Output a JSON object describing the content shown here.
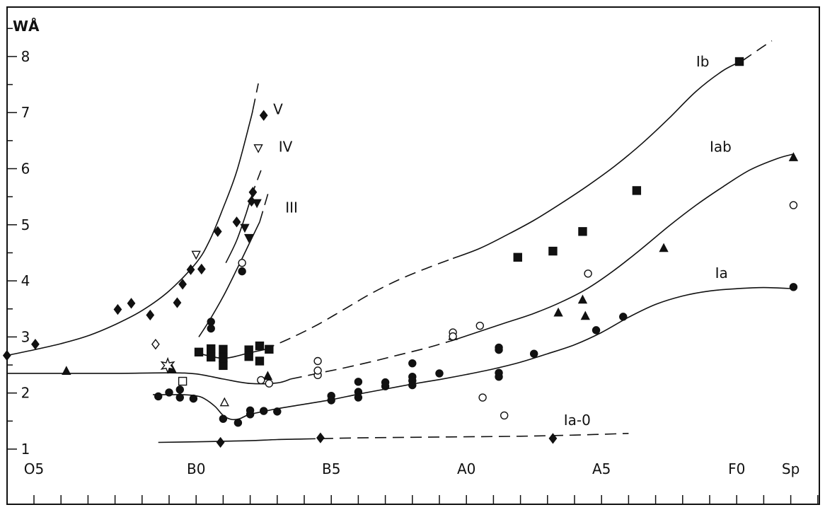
{
  "chart_data": {
    "type": "scatter",
    "ylabel": "WÅ",
    "xlabel": "",
    "xlim": [
      -1,
      29
    ],
    "ylim": [
      0.65,
      8.75
    ],
    "grid": false,
    "x_ticks": [
      {
        "x": 0,
        "label": "O5"
      },
      {
        "x": 6,
        "label": "B0"
      },
      {
        "x": 11,
        "label": "B5"
      },
      {
        "x": 16,
        "label": "A0"
      },
      {
        "x": 21,
        "label": "A5"
      },
      {
        "x": 26,
        "label": "F0"
      },
      {
        "x": 28,
        "label": "Sp"
      }
    ],
    "y_ticks": [
      1,
      2,
      3,
      4,
      5,
      6,
      7,
      8
    ],
    "curves": [
      {
        "label": "V",
        "style": "solid",
        "points": [
          [
            -1,
            2.67
          ],
          [
            0,
            2.77
          ],
          [
            1,
            2.88
          ],
          [
            2,
            3.02
          ],
          [
            3,
            3.22
          ],
          [
            4,
            3.47
          ],
          [
            5,
            3.82
          ],
          [
            6,
            4.32
          ],
          [
            6.5,
            4.72
          ],
          [
            7,
            5.3
          ],
          [
            7.5,
            5.95
          ],
          [
            8,
            6.85
          ],
          [
            8.1,
            7.05
          ]
        ]
      },
      {
        "label": "V",
        "style": "dashed",
        "points": [
          [
            8.1,
            7.05
          ],
          [
            8.3,
            7.52
          ]
        ]
      },
      {
        "label": "IV",
        "style": "solid",
        "points": [
          [
            7.1,
            4.32
          ],
          [
            7.5,
            4.72
          ],
          [
            7.85,
            5.2
          ]
        ]
      },
      {
        "label": "IV",
        "style": "dashed",
        "points": [
          [
            7.85,
            5.2
          ],
          [
            8.1,
            5.58
          ],
          [
            8.4,
            5.97
          ]
        ]
      },
      {
        "label": "III",
        "style": "solid",
        "points": [
          [
            6.1,
            3.0
          ],
          [
            6.5,
            3.3
          ],
          [
            7,
            3.72
          ],
          [
            7.5,
            4.2
          ],
          [
            8,
            4.7
          ],
          [
            8.35,
            5.05
          ]
        ]
      },
      {
        "label": "III",
        "style": "dashed",
        "points": [
          [
            8.35,
            5.05
          ],
          [
            8.7,
            5.62
          ]
        ]
      },
      {
        "label": "Ib",
        "style": "solid",
        "points": [
          [
            6,
            2.72
          ],
          [
            7,
            2.62
          ],
          [
            8,
            2.72
          ],
          [
            8.5,
            2.77
          ]
        ]
      },
      {
        "label": "Ib",
        "style": "dashed",
        "points": [
          [
            8.5,
            2.77
          ],
          [
            9.5,
            2.98
          ],
          [
            10.5,
            3.22
          ],
          [
            11.5,
            3.5
          ],
          [
            12.5,
            3.78
          ],
          [
            13.5,
            4.02
          ],
          [
            14.5,
            4.22
          ],
          [
            15.5,
            4.4
          ]
        ]
      },
      {
        "label": "Ib",
        "style": "solid",
        "points": [
          [
            15.5,
            4.4
          ],
          [
            16.5,
            4.58
          ],
          [
            17.5,
            4.82
          ],
          [
            18.5,
            5.08
          ],
          [
            19.5,
            5.38
          ],
          [
            20.5,
            5.7
          ],
          [
            21.5,
            6.05
          ],
          [
            22.5,
            6.45
          ],
          [
            23.5,
            6.9
          ],
          [
            24.5,
            7.38
          ],
          [
            25.5,
            7.75
          ],
          [
            26.2,
            7.92
          ]
        ]
      },
      {
        "label": "Ib",
        "style": "dashed",
        "points": [
          [
            26.2,
            7.92
          ],
          [
            26.8,
            8.12
          ],
          [
            27.3,
            8.28
          ]
        ]
      },
      {
        "label": "Iab",
        "style": "solid",
        "points": [
          [
            -1,
            2.35
          ],
          [
            1,
            2.35
          ],
          [
            3,
            2.35
          ],
          [
            5,
            2.36
          ],
          [
            6,
            2.34
          ],
          [
            7,
            2.25
          ],
          [
            8,
            2.17
          ],
          [
            9,
            2.18
          ],
          [
            9.5,
            2.25
          ]
        ]
      },
      {
        "label": "Iab",
        "style": "dashed",
        "points": [
          [
            9.5,
            2.25
          ],
          [
            10.5,
            2.35
          ],
          [
            11.5,
            2.45
          ],
          [
            12.5,
            2.56
          ],
          [
            13.5,
            2.68
          ],
          [
            14.5,
            2.8
          ],
          [
            15.5,
            2.94
          ]
        ]
      },
      {
        "label": "Iab",
        "style": "solid",
        "points": [
          [
            15.5,
            2.94
          ],
          [
            16.5,
            3.1
          ],
          [
            17.5,
            3.26
          ],
          [
            18.5,
            3.42
          ],
          [
            19.5,
            3.62
          ],
          [
            20.5,
            3.87
          ],
          [
            21.5,
            4.2
          ],
          [
            22.5,
            4.58
          ],
          [
            23.5,
            4.98
          ],
          [
            24.5,
            5.35
          ],
          [
            25.5,
            5.68
          ],
          [
            26.5,
            5.98
          ],
          [
            27.5,
            6.18
          ],
          [
            28.1,
            6.26
          ]
        ]
      },
      {
        "label": "Ia",
        "style": "solid",
        "points": [
          [
            4.4,
            1.97
          ],
          [
            5,
            1.97
          ],
          [
            5.5,
            1.97
          ],
          [
            6,
            1.95
          ],
          [
            6.3,
            1.9
          ],
          [
            6.7,
            1.76
          ],
          [
            7,
            1.6
          ],
          [
            7.3,
            1.53
          ],
          [
            7.6,
            1.54
          ],
          [
            8,
            1.62
          ],
          [
            9,
            1.72
          ],
          [
            10,
            1.8
          ],
          [
            11,
            1.88
          ],
          [
            12,
            1.98
          ],
          [
            13,
            2.07
          ],
          [
            14,
            2.16
          ],
          [
            15,
            2.24
          ],
          [
            16,
            2.33
          ],
          [
            17,
            2.43
          ],
          [
            18,
            2.55
          ],
          [
            19,
            2.7
          ],
          [
            20,
            2.86
          ],
          [
            21,
            3.08
          ],
          [
            22,
            3.35
          ],
          [
            23,
            3.58
          ],
          [
            24,
            3.73
          ],
          [
            25,
            3.82
          ],
          [
            26,
            3.86
          ],
          [
            27,
            3.88
          ],
          [
            28.1,
            3.86
          ]
        ]
      },
      {
        "label": "Ia-0",
        "style": "solid",
        "points": [
          [
            4.6,
            1.12
          ],
          [
            6,
            1.13
          ],
          [
            7,
            1.14
          ],
          [
            8,
            1.15
          ],
          [
            9,
            1.17
          ],
          [
            10,
            1.18
          ]
        ]
      },
      {
        "label": "Ia-0",
        "style": "dashed",
        "points": [
          [
            10,
            1.18
          ],
          [
            12,
            1.2
          ],
          [
            14,
            1.21
          ],
          [
            16,
            1.22
          ],
          [
            18,
            1.23
          ],
          [
            20,
            1.25
          ],
          [
            22,
            1.28
          ]
        ]
      }
    ],
    "series": [
      {
        "marker": "diamond",
        "filled": true,
        "points": [
          [
            -1,
            2.67
          ],
          [
            0.05,
            2.87
          ],
          [
            3.1,
            3.49
          ],
          [
            3.6,
            3.6
          ],
          [
            4.3,
            3.39
          ],
          [
            5.3,
            3.61
          ],
          [
            5.5,
            3.94
          ],
          [
            5.8,
            4.2
          ],
          [
            6.2,
            4.21
          ],
          [
            6.8,
            4.88
          ],
          [
            7.5,
            5.05
          ],
          [
            8.05,
            5.42
          ],
          [
            8.1,
            5.58
          ],
          [
            8.5,
            6.95
          ],
          [
            10.6,
            1.2
          ],
          [
            19.2,
            1.19
          ],
          [
            6.9,
            1.12
          ]
        ]
      },
      {
        "marker": "diamond",
        "filled": false,
        "points": [
          [
            4.5,
            2.87
          ]
        ]
      },
      {
        "marker": "triangle-down",
        "filled": true,
        "points": [
          [
            7.8,
            4.95
          ],
          [
            7.95,
            4.77
          ],
          [
            8.25,
            5.39
          ]
        ]
      },
      {
        "marker": "triangle-down",
        "filled": false,
        "points": [
          [
            6.0,
            4.47
          ],
          [
            8.3,
            6.37
          ]
        ]
      },
      {
        "marker": "square",
        "filled": true,
        "points": [
          [
            6.1,
            2.73
          ],
          [
            6.55,
            2.79
          ],
          [
            6.55,
            2.64
          ],
          [
            7.0,
            2.78
          ],
          [
            7.0,
            2.63
          ],
          [
            7.0,
            2.49
          ],
          [
            7.95,
            2.77
          ],
          [
            7.95,
            2.65
          ],
          [
            8.35,
            2.84
          ],
          [
            8.35,
            2.57
          ],
          [
            8.7,
            2.78
          ],
          [
            17.9,
            4.42
          ],
          [
            19.2,
            4.53
          ],
          [
            20.3,
            4.88
          ],
          [
            22.3,
            5.61
          ],
          [
            26.1,
            7.91
          ]
        ]
      },
      {
        "marker": "square",
        "filled": false,
        "points": [
          [
            5.5,
            2.21
          ]
        ]
      },
      {
        "marker": "triangle-up",
        "filled": true,
        "points": [
          [
            1.2,
            2.39
          ],
          [
            5.1,
            2.43
          ],
          [
            8.65,
            2.3
          ],
          [
            15.5,
            3.01
          ],
          [
            19.4,
            3.43
          ],
          [
            20.3,
            3.66
          ],
          [
            20.4,
            3.37
          ],
          [
            23.3,
            4.58
          ],
          [
            28.1,
            6.2
          ]
        ]
      },
      {
        "marker": "triangle-up",
        "filled": false,
        "points": [
          [
            7.05,
            1.83
          ]
        ]
      },
      {
        "marker": "circle",
        "filled": true,
        "points": [
          [
            4.6,
            1.94
          ],
          [
            5.0,
            2.01
          ],
          [
            5.4,
            2.06
          ],
          [
            5.4,
            1.92
          ],
          [
            5.9,
            1.9
          ],
          [
            6.55,
            3.27
          ],
          [
            6.55,
            3.15
          ],
          [
            7.0,
            1.54
          ],
          [
            7.55,
            1.47
          ],
          [
            8.0,
            1.69
          ],
          [
            8.0,
            1.62
          ],
          [
            8.5,
            1.68
          ],
          [
            9.0,
            1.67
          ],
          [
            7.7,
            4.17
          ],
          [
            11.0,
            1.95
          ],
          [
            11.0,
            1.87
          ],
          [
            12.0,
            2.2
          ],
          [
            12.0,
            2.02
          ],
          [
            12.0,
            1.92
          ],
          [
            13.0,
            2.19
          ],
          [
            13.0,
            2.12
          ],
          [
            14.0,
            2.53
          ],
          [
            14.0,
            2.29
          ],
          [
            14.0,
            2.22
          ],
          [
            14.0,
            2.14
          ],
          [
            15.0,
            2.35
          ],
          [
            17.2,
            2.81
          ],
          [
            17.2,
            2.77
          ],
          [
            17.2,
            2.36
          ],
          [
            17.2,
            2.29
          ],
          [
            18.5,
            2.7
          ],
          [
            20.8,
            3.12
          ],
          [
            21.8,
            3.36
          ],
          [
            28.1,
            3.89
          ]
        ]
      },
      {
        "marker": "circle",
        "filled": false,
        "points": [
          [
            7.7,
            4.32
          ],
          [
            8.4,
            2.23
          ],
          [
            8.7,
            2.17
          ],
          [
            10.5,
            2.32
          ],
          [
            10.5,
            2.57
          ],
          [
            10.5,
            2.4
          ],
          [
            15.5,
            3.08
          ],
          [
            15.5,
            3.01
          ],
          [
            16.5,
            3.2
          ],
          [
            16.6,
            1.92
          ],
          [
            17.4,
            1.6
          ],
          [
            20.5,
            4.13
          ],
          [
            28.1,
            5.35
          ]
        ]
      },
      {
        "marker": "star",
        "filled": false,
        "points": [
          [
            4.95,
            2.49
          ]
        ]
      }
    ],
    "curve_labels": [
      {
        "text": "V",
        "x": 8.85,
        "y": 6.97
      },
      {
        "text": "IV",
        "x": 9.05,
        "y": 6.3
      },
      {
        "text": "III",
        "x": 9.3,
        "y": 5.22
      },
      {
        "text": "Ib",
        "x": 24.5,
        "y": 7.82
      },
      {
        "text": "Iab",
        "x": 25.0,
        "y": 6.3
      },
      {
        "text": "Ia",
        "x": 25.2,
        "y": 4.05
      },
      {
        "text": "Ia-0",
        "x": 19.6,
        "y": 1.43
      }
    ]
  }
}
